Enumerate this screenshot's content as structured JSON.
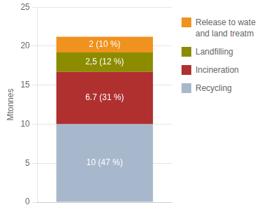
{
  "chart_data": {
    "type": "bar",
    "stacked": true,
    "y_label": "Mtonnes",
    "categories": [
      null
    ],
    "series": [
      {
        "name": "Recycling",
        "color": "#a8b8cc",
        "values": [
          10.0
        ],
        "value_labels": [
          "10 (47 %)"
        ]
      },
      {
        "name": "Incineration",
        "color": "#b03030",
        "values": [
          6.7
        ],
        "value_labels": [
          "6.7 (31 %)"
        ]
      },
      {
        "name": "Landfilling",
        "color": "#8c8c00",
        "values": [
          2.5
        ],
        "value_labels": [
          "2,5 (12 %)"
        ]
      },
      {
        "name": "Release to wate\nand land treatm",
        "color": "#f0921e",
        "values": [
          2.0
        ],
        "value_labels": [
          "2 (10 %)"
        ]
      }
    ],
    "ylim": [
      0,
      25
    ],
    "yticks": [
      0,
      5,
      10,
      15,
      20,
      25
    ],
    "grid": true,
    "legend": "right",
    "data_labels": true,
    "tick_labels": "y"
  }
}
